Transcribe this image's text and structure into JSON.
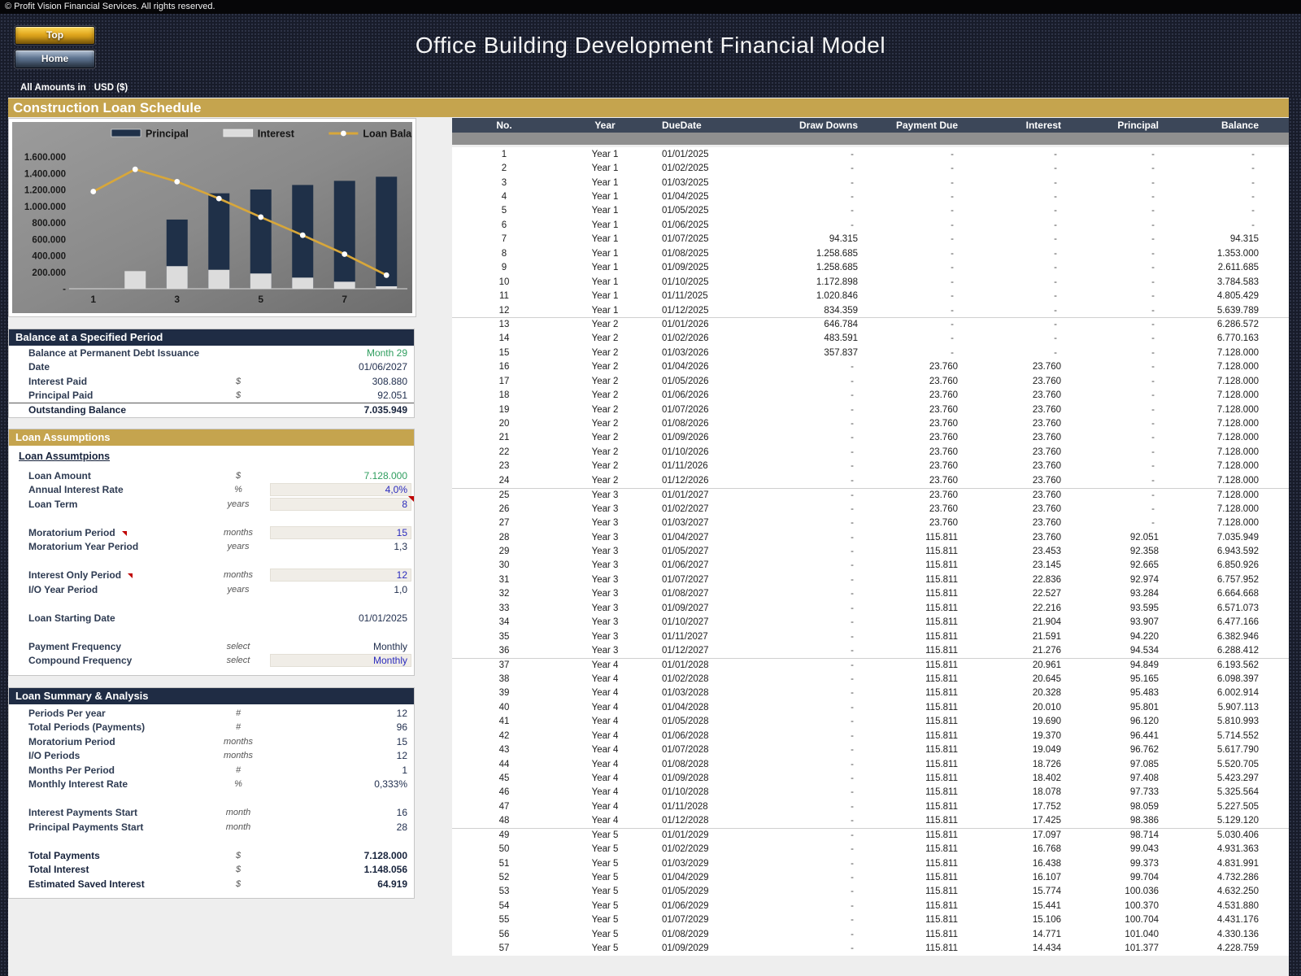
{
  "banner": {
    "copyright": "© Profit Vision Financial Services. All rights reserved.",
    "title": "Office Building Development Financial Model",
    "top_button": "Top",
    "home_button": "Home",
    "amounts_label": "All Amounts in",
    "currency": "USD ($)"
  },
  "sheet_title": "Construction Loan Schedule",
  "chart_data": {
    "type": "bar+line",
    "categories": [
      "1",
      "2",
      "3",
      "4",
      "5",
      "6",
      "7",
      "8"
    ],
    "bar_mode": "overlap",
    "legend_position": "top",
    "series": [
      {
        "name": "Principal",
        "type": "bar",
        "color": "#1f3048",
        "values": [
          0,
          0,
          840000,
          1159000,
          1205000,
          1260000,
          1310000,
          1360000
        ]
      },
      {
        "name": "Interest",
        "type": "bar",
        "color": "#dcdcdc",
        "values": [
          0,
          214000,
          274000,
          230000,
          185000,
          135000,
          85000,
          30000
        ]
      },
      {
        "name": "Loan Balance",
        "type": "line",
        "color": "#d8a73a",
        "values": [
          1180000,
          1450000,
          1300000,
          1095000,
          870000,
          650000,
          420000,
          165000
        ]
      }
    ],
    "ylim": [
      0,
      1600000
    ],
    "ytick_labels": [
      "1.600.000",
      "1.400.000",
      "1.200.000",
      "1.000.000",
      "800.000",
      "600.000",
      "400.000",
      "200.000",
      "-"
    ],
    "xtick_labels": [
      "1",
      "",
      "3",
      "",
      "5",
      "",
      "7",
      ""
    ],
    "xlabel": "",
    "ylabel": "",
    "grid": false
  },
  "balance_panel": {
    "title": "Balance at a Specified Period",
    "rows": [
      {
        "label": "Balance at Permanent Debt Issuance",
        "unit": "",
        "value": "Month 29",
        "kind": "green"
      },
      {
        "label": "Date",
        "unit": "",
        "value": "01/06/2027"
      },
      {
        "label": "Interest Paid",
        "unit": "$",
        "value": "308.880"
      },
      {
        "label": "Principal Paid",
        "unit": "$",
        "value": "92.051"
      },
      {
        "label": "Outstanding Balance",
        "unit": "",
        "value": "7.035.949",
        "bold": true,
        "total": true
      }
    ]
  },
  "assumptions_panel": {
    "title": "Loan Assumptions",
    "subtitle": "Loan Assumtpions",
    "rows": [
      {
        "label": "Loan Amount",
        "unit": "$",
        "value": "7.128.000",
        "kind": "green"
      },
      {
        "label": "Annual Interest Rate",
        "unit": "%",
        "value": "4,0%",
        "kind": "blue",
        "input": true
      },
      {
        "label": "Loan Term",
        "unit": "years",
        "value": "8",
        "kind": "blue",
        "input": true,
        "cell_marker": true
      },
      {
        "spacer": true
      },
      {
        "label": "Moratorium Period",
        "unit": "months",
        "value": "15",
        "kind": "blue",
        "input": true,
        "note_marker": true
      },
      {
        "label": "Moratorium Year Period",
        "unit": "years",
        "value": "1,3"
      },
      {
        "spacer": true
      },
      {
        "label": "Interest Only Period",
        "unit": "months",
        "value": "12",
        "kind": "blue",
        "input": true,
        "note_marker": true
      },
      {
        "label": "I/O Year Period",
        "unit": "years",
        "value": "1,0"
      },
      {
        "spacer": true
      },
      {
        "label": "Loan Starting Date",
        "unit": "",
        "value": "01/01/2025"
      },
      {
        "spacer": true
      },
      {
        "label": "Payment Frequency",
        "unit": "select",
        "value": "Monthly"
      },
      {
        "label": "Compound Frequency",
        "unit": "select",
        "value": "Monthly",
        "kind": "blue",
        "input": true
      }
    ]
  },
  "summary_panel": {
    "title": "Loan Summary & Analysis",
    "rows": [
      {
        "label": "Periods Per year",
        "unit": "#",
        "value": "12"
      },
      {
        "label": "Total Periods (Payments)",
        "unit": "#",
        "value": "96"
      },
      {
        "label": "Moratorium Period",
        "unit": "months",
        "value": "15"
      },
      {
        "label": "I/O Periods",
        "unit": "months",
        "value": "12"
      },
      {
        "label": "Months Per Period",
        "unit": "#",
        "value": "1"
      },
      {
        "label": "Monthly Interest Rate",
        "unit": "%",
        "value": "0,333%"
      },
      {
        "spacer": true
      },
      {
        "label": "Interest Payments Start",
        "unit": "month",
        "value": "16"
      },
      {
        "label": "Principal Payments Start",
        "unit": "month",
        "value": "28"
      },
      {
        "spacer": true
      },
      {
        "label": "Total Payments",
        "unit": "$",
        "value": "7.128.000",
        "bold": true
      },
      {
        "label": "Total Interest",
        "unit": "$",
        "value": "1.148.056",
        "bold": true
      },
      {
        "label": "Estimated Saved Interest",
        "unit": "$",
        "value": "64.919",
        "bold": true
      }
    ]
  },
  "table": {
    "columns": [
      "No.",
      "Year",
      "DueDate",
      "Draw Downs",
      "Payment Due",
      "Interest",
      "Principal",
      "Balance"
    ],
    "year_group_breaks": [
      13,
      25,
      37,
      49
    ],
    "rows": [
      [
        "1",
        "Year 1",
        "01/01/2025",
        "-",
        "-",
        "-",
        "-",
        "-"
      ],
      [
        "2",
        "Year 1",
        "01/02/2025",
        "-",
        "-",
        "-",
        "-",
        "-"
      ],
      [
        "3",
        "Year 1",
        "01/03/2025",
        "-",
        "-",
        "-",
        "-",
        "-"
      ],
      [
        "4",
        "Year 1",
        "01/04/2025",
        "-",
        "-",
        "-",
        "-",
        "-"
      ],
      [
        "5",
        "Year 1",
        "01/05/2025",
        "-",
        "-",
        "-",
        "-",
        "-"
      ],
      [
        "6",
        "Year 1",
        "01/06/2025",
        "-",
        "-",
        "-",
        "-",
        "-"
      ],
      [
        "7",
        "Year 1",
        "01/07/2025",
        "94.315",
        "-",
        "-",
        "-",
        "94.315"
      ],
      [
        "8",
        "Year 1",
        "01/08/2025",
        "1.258.685",
        "-",
        "-",
        "-",
        "1.353.000"
      ],
      [
        "9",
        "Year 1",
        "01/09/2025",
        "1.258.685",
        "-",
        "-",
        "-",
        "2.611.685"
      ],
      [
        "10",
        "Year 1",
        "01/10/2025",
        "1.172.898",
        "-",
        "-",
        "-",
        "3.784.583"
      ],
      [
        "11",
        "Year 1",
        "01/11/2025",
        "1.020.846",
        "-",
        "-",
        "-",
        "4.805.429"
      ],
      [
        "12",
        "Year 1",
        "01/12/2025",
        "834.359",
        "-",
        "-",
        "-",
        "5.639.789"
      ],
      [
        "13",
        "Year 2",
        "01/01/2026",
        "646.784",
        "-",
        "-",
        "-",
        "6.286.572"
      ],
      [
        "14",
        "Year 2",
        "01/02/2026",
        "483.591",
        "-",
        "-",
        "-",
        "6.770.163"
      ],
      [
        "15",
        "Year 2",
        "01/03/2026",
        "357.837",
        "-",
        "-",
        "-",
        "7.128.000"
      ],
      [
        "16",
        "Year 2",
        "01/04/2026",
        "-",
        "23.760",
        "23.760",
        "-",
        "7.128.000"
      ],
      [
        "17",
        "Year 2",
        "01/05/2026",
        "-",
        "23.760",
        "23.760",
        "-",
        "7.128.000"
      ],
      [
        "18",
        "Year 2",
        "01/06/2026",
        "-",
        "23.760",
        "23.760",
        "-",
        "7.128.000"
      ],
      [
        "19",
        "Year 2",
        "01/07/2026",
        "-",
        "23.760",
        "23.760",
        "-",
        "7.128.000"
      ],
      [
        "20",
        "Year 2",
        "01/08/2026",
        "-",
        "23.760",
        "23.760",
        "-",
        "7.128.000"
      ],
      [
        "21",
        "Year 2",
        "01/09/2026",
        "-",
        "23.760",
        "23.760",
        "-",
        "7.128.000"
      ],
      [
        "22",
        "Year 2",
        "01/10/2026",
        "-",
        "23.760",
        "23.760",
        "-",
        "7.128.000"
      ],
      [
        "23",
        "Year 2",
        "01/11/2026",
        "-",
        "23.760",
        "23.760",
        "-",
        "7.128.000"
      ],
      [
        "24",
        "Year 2",
        "01/12/2026",
        "-",
        "23.760",
        "23.760",
        "-",
        "7.128.000"
      ],
      [
        "25",
        "Year 3",
        "01/01/2027",
        "-",
        "23.760",
        "23.760",
        "-",
        "7.128.000"
      ],
      [
        "26",
        "Year 3",
        "01/02/2027",
        "-",
        "23.760",
        "23.760",
        "-",
        "7.128.000"
      ],
      [
        "27",
        "Year 3",
        "01/03/2027",
        "-",
        "23.760",
        "23.760",
        "-",
        "7.128.000"
      ],
      [
        "28",
        "Year 3",
        "01/04/2027",
        "-",
        "115.811",
        "23.760",
        "92.051",
        "7.035.949"
      ],
      [
        "29",
        "Year 3",
        "01/05/2027",
        "-",
        "115.811",
        "23.453",
        "92.358",
        "6.943.592"
      ],
      [
        "30",
        "Year 3",
        "01/06/2027",
        "-",
        "115.811",
        "23.145",
        "92.665",
        "6.850.926"
      ],
      [
        "31",
        "Year 3",
        "01/07/2027",
        "-",
        "115.811",
        "22.836",
        "92.974",
        "6.757.952"
      ],
      [
        "32",
        "Year 3",
        "01/08/2027",
        "-",
        "115.811",
        "22.527",
        "93.284",
        "6.664.668"
      ],
      [
        "33",
        "Year 3",
        "01/09/2027",
        "-",
        "115.811",
        "22.216",
        "93.595",
        "6.571.073"
      ],
      [
        "34",
        "Year 3",
        "01/10/2027",
        "-",
        "115.811",
        "21.904",
        "93.907",
        "6.477.166"
      ],
      [
        "35",
        "Year 3",
        "01/11/2027",
        "-",
        "115.811",
        "21.591",
        "94.220",
        "6.382.946"
      ],
      [
        "36",
        "Year 3",
        "01/12/2027",
        "-",
        "115.811",
        "21.276",
        "94.534",
        "6.288.412"
      ],
      [
        "37",
        "Year 4",
        "01/01/2028",
        "-",
        "115.811",
        "20.961",
        "94.849",
        "6.193.562"
      ],
      [
        "38",
        "Year 4",
        "01/02/2028",
        "-",
        "115.811",
        "20.645",
        "95.165",
        "6.098.397"
      ],
      [
        "39",
        "Year 4",
        "01/03/2028",
        "-",
        "115.811",
        "20.328",
        "95.483",
        "6.002.914"
      ],
      [
        "40",
        "Year 4",
        "01/04/2028",
        "-",
        "115.811",
        "20.010",
        "95.801",
        "5.907.113"
      ],
      [
        "41",
        "Year 4",
        "01/05/2028",
        "-",
        "115.811",
        "19.690",
        "96.120",
        "5.810.993"
      ],
      [
        "42",
        "Year 4",
        "01/06/2028",
        "-",
        "115.811",
        "19.370",
        "96.441",
        "5.714.552"
      ],
      [
        "43",
        "Year 4",
        "01/07/2028",
        "-",
        "115.811",
        "19.049",
        "96.762",
        "5.617.790"
      ],
      [
        "44",
        "Year 4",
        "01/08/2028",
        "-",
        "115.811",
        "18.726",
        "97.085",
        "5.520.705"
      ],
      [
        "45",
        "Year 4",
        "01/09/2028",
        "-",
        "115.811",
        "18.402",
        "97.408",
        "5.423.297"
      ],
      [
        "46",
        "Year 4",
        "01/10/2028",
        "-",
        "115.811",
        "18.078",
        "97.733",
        "5.325.564"
      ],
      [
        "47",
        "Year 4",
        "01/11/2028",
        "-",
        "115.811",
        "17.752",
        "98.059",
        "5.227.505"
      ],
      [
        "48",
        "Year 4",
        "01/12/2028",
        "-",
        "115.811",
        "17.425",
        "98.386",
        "5.129.120"
      ],
      [
        "49",
        "Year 5",
        "01/01/2029",
        "-",
        "115.811",
        "17.097",
        "98.714",
        "5.030.406"
      ],
      [
        "50",
        "Year 5",
        "01/02/2029",
        "-",
        "115.811",
        "16.768",
        "99.043",
        "4.931.363"
      ],
      [
        "51",
        "Year 5",
        "01/03/2029",
        "-",
        "115.811",
        "16.438",
        "99.373",
        "4.831.991"
      ],
      [
        "52",
        "Year 5",
        "01/04/2029",
        "-",
        "115.811",
        "16.107",
        "99.704",
        "4.732.286"
      ],
      [
        "53",
        "Year 5",
        "01/05/2029",
        "-",
        "115.811",
        "15.774",
        "100.036",
        "4.632.250"
      ],
      [
        "54",
        "Year 5",
        "01/06/2029",
        "-",
        "115.811",
        "15.441",
        "100.370",
        "4.531.880"
      ],
      [
        "55",
        "Year 5",
        "01/07/2029",
        "-",
        "115.811",
        "15.106",
        "100.704",
        "4.431.176"
      ],
      [
        "56",
        "Year 5",
        "01/08/2029",
        "-",
        "115.811",
        "14.771",
        "101.040",
        "4.330.136"
      ],
      [
        "57",
        "Year 5",
        "01/09/2029",
        "-",
        "115.811",
        "14.434",
        "101.377",
        "4.228.759"
      ]
    ]
  }
}
